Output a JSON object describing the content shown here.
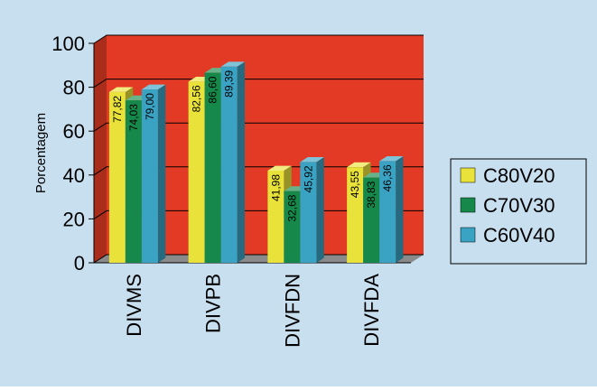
{
  "chart_data": {
    "type": "bar",
    "subtype": "3d-clustered-column",
    "ylabel": "Porcentagem",
    "xlabel": "",
    "ylim": [
      0,
      100
    ],
    "yticks": [
      0,
      20,
      40,
      60,
      80,
      100
    ],
    "categories": [
      "DIVMS",
      "DIVPB",
      "DIVFDN",
      "DIVFDA"
    ],
    "series": [
      {
        "name": "C80V20",
        "color": "#e8e23a",
        "values": [
          77.82,
          82.56,
          41.98,
          43.55
        ],
        "labels": [
          "77,82",
          "82,56",
          "41,98",
          "43,55"
        ]
      },
      {
        "name": "C70V30",
        "color": "#16894a",
        "values": [
          74.03,
          86.6,
          32.68,
          38.83
        ],
        "labels": [
          "74,03",
          "86,60",
          "32,68",
          "38,83"
        ]
      },
      {
        "name": "C60V40",
        "color": "#3aa3c4",
        "values": [
          79.0,
          89.39,
          45.92,
          46.36
        ],
        "labels": [
          "79,00",
          "89,39",
          "45,92",
          "46,36"
        ]
      }
    ],
    "grid": true,
    "legend": "right",
    "colors": {
      "background": "#c8dff0",
      "back_wall": "#e23a24",
      "floor": "#8a8a8a"
    }
  }
}
